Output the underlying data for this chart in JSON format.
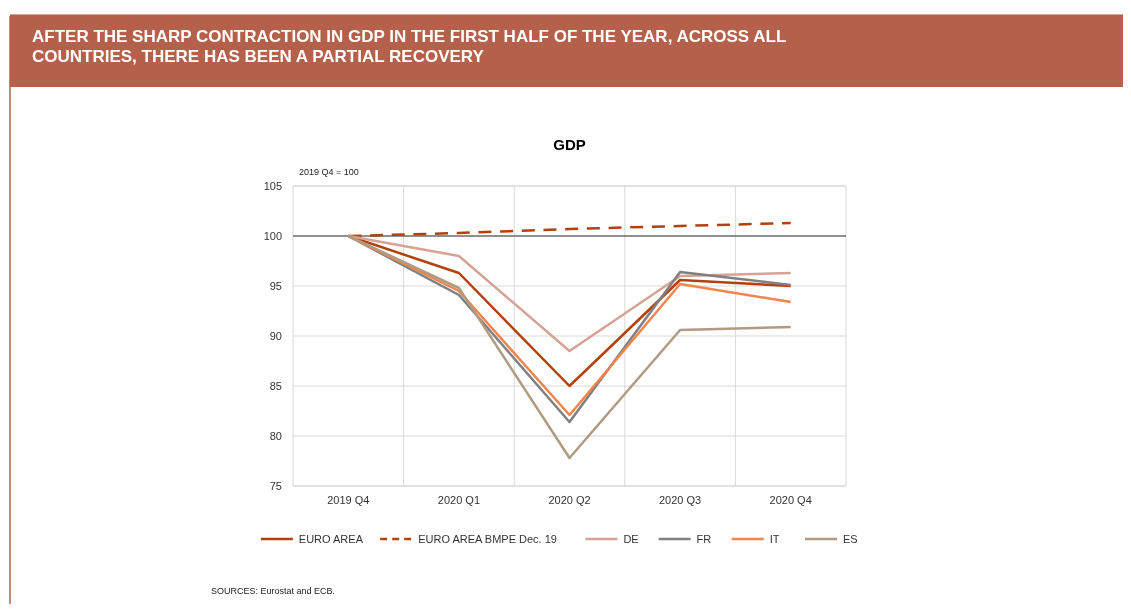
{
  "chart_data": {
    "type": "line",
    "title": "AFTER THE SHARP CONTRACTION IN GDP IN THE FIRST HALF OF THE YEAR, ACROSS ALL COUNTRIES, THERE HAS BEEN A PARTIAL RECOVERY",
    "subtitle": "GDP",
    "ylabel": "2019 Q4 = 100",
    "categories": [
      "2019 Q4",
      "2020 Q1",
      "2020 Q2",
      "2020 Q3",
      "2020 Q4"
    ],
    "series": [
      {
        "name": "EURO AREA",
        "color": "#b5400c",
        "values": [
          100,
          96.3,
          85.0,
          95.6,
          95.0
        ]
      },
      {
        "name": "EURO AREA BMPE Dec. 19",
        "color": "#b5400c",
        "line_style": "dashed",
        "values": [
          100,
          100.3,
          100.7,
          101.0,
          101.3
        ]
      },
      {
        "name": "DE",
        "color": "#d6a293",
        "values": [
          100,
          98.0,
          88.5,
          96.0,
          96.3
        ]
      },
      {
        "name": "FR",
        "color": "#808080",
        "values": [
          100,
          94.1,
          81.4,
          96.4,
          95.1
        ]
      },
      {
        "name": "IT",
        "color": "#f5844c",
        "values": [
          100,
          94.5,
          82.1,
          95.2,
          93.4
        ]
      },
      {
        "name": "ES",
        "color": "#b09a80",
        "values": [
          100,
          94.8,
          77.8,
          90.6,
          90.9
        ]
      }
    ],
    "ylim": [
      75,
      105
    ],
    "yticks": [
      75,
      80,
      85,
      90,
      95,
      100,
      105
    ],
    "grid": true,
    "legend": "bottom",
    "line_style": "solid",
    "ref_lines": [
      {
        "axis": "y",
        "value": 100,
        "color": "#333333"
      }
    ],
    "annotations": [
      "SOURCES: Eurostat and ECB."
    ]
  }
}
